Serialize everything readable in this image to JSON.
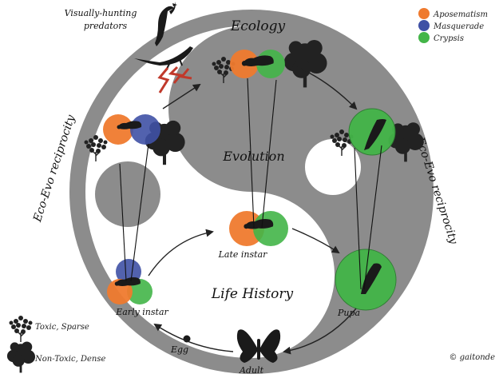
{
  "labels": {
    "predators": [
      "Visually-hunting",
      "predators"
    ],
    "ecology": "Ecology",
    "evolution": "Evolution",
    "life_history": "Life History",
    "eco_evo_left": "Eco-Evo reciprocity",
    "eco_evo_right": "Eco-Evo reciprocity",
    "late_instar": "Late instar",
    "early_instar": "Early instar",
    "pupa": "Pupa",
    "egg": "Egg",
    "adult": "Adult",
    "copyright": "© gaitonde"
  },
  "legend": [
    {
      "label": "Aposematism",
      "color": "#ef7a2e"
    },
    {
      "label": "Masquerade",
      "color": "#3f51a5"
    },
    {
      "label": "Crypsis",
      "color": "#43b548"
    }
  ],
  "tree_legend": [
    {
      "label": "Toxic, Sparse",
      "icon": "sparse-tree-icon"
    },
    {
      "label": "Non-Toxic, Dense",
      "icon": "dense-tree-icon"
    }
  ],
  "colors": {
    "ring": "#8c8c8c",
    "aposematism": "#ef7a2e",
    "masquerade": "#3f51a5",
    "crypsis": "#43b548",
    "silhouette": "#1a1a1a",
    "lightning": "#c0392b"
  }
}
